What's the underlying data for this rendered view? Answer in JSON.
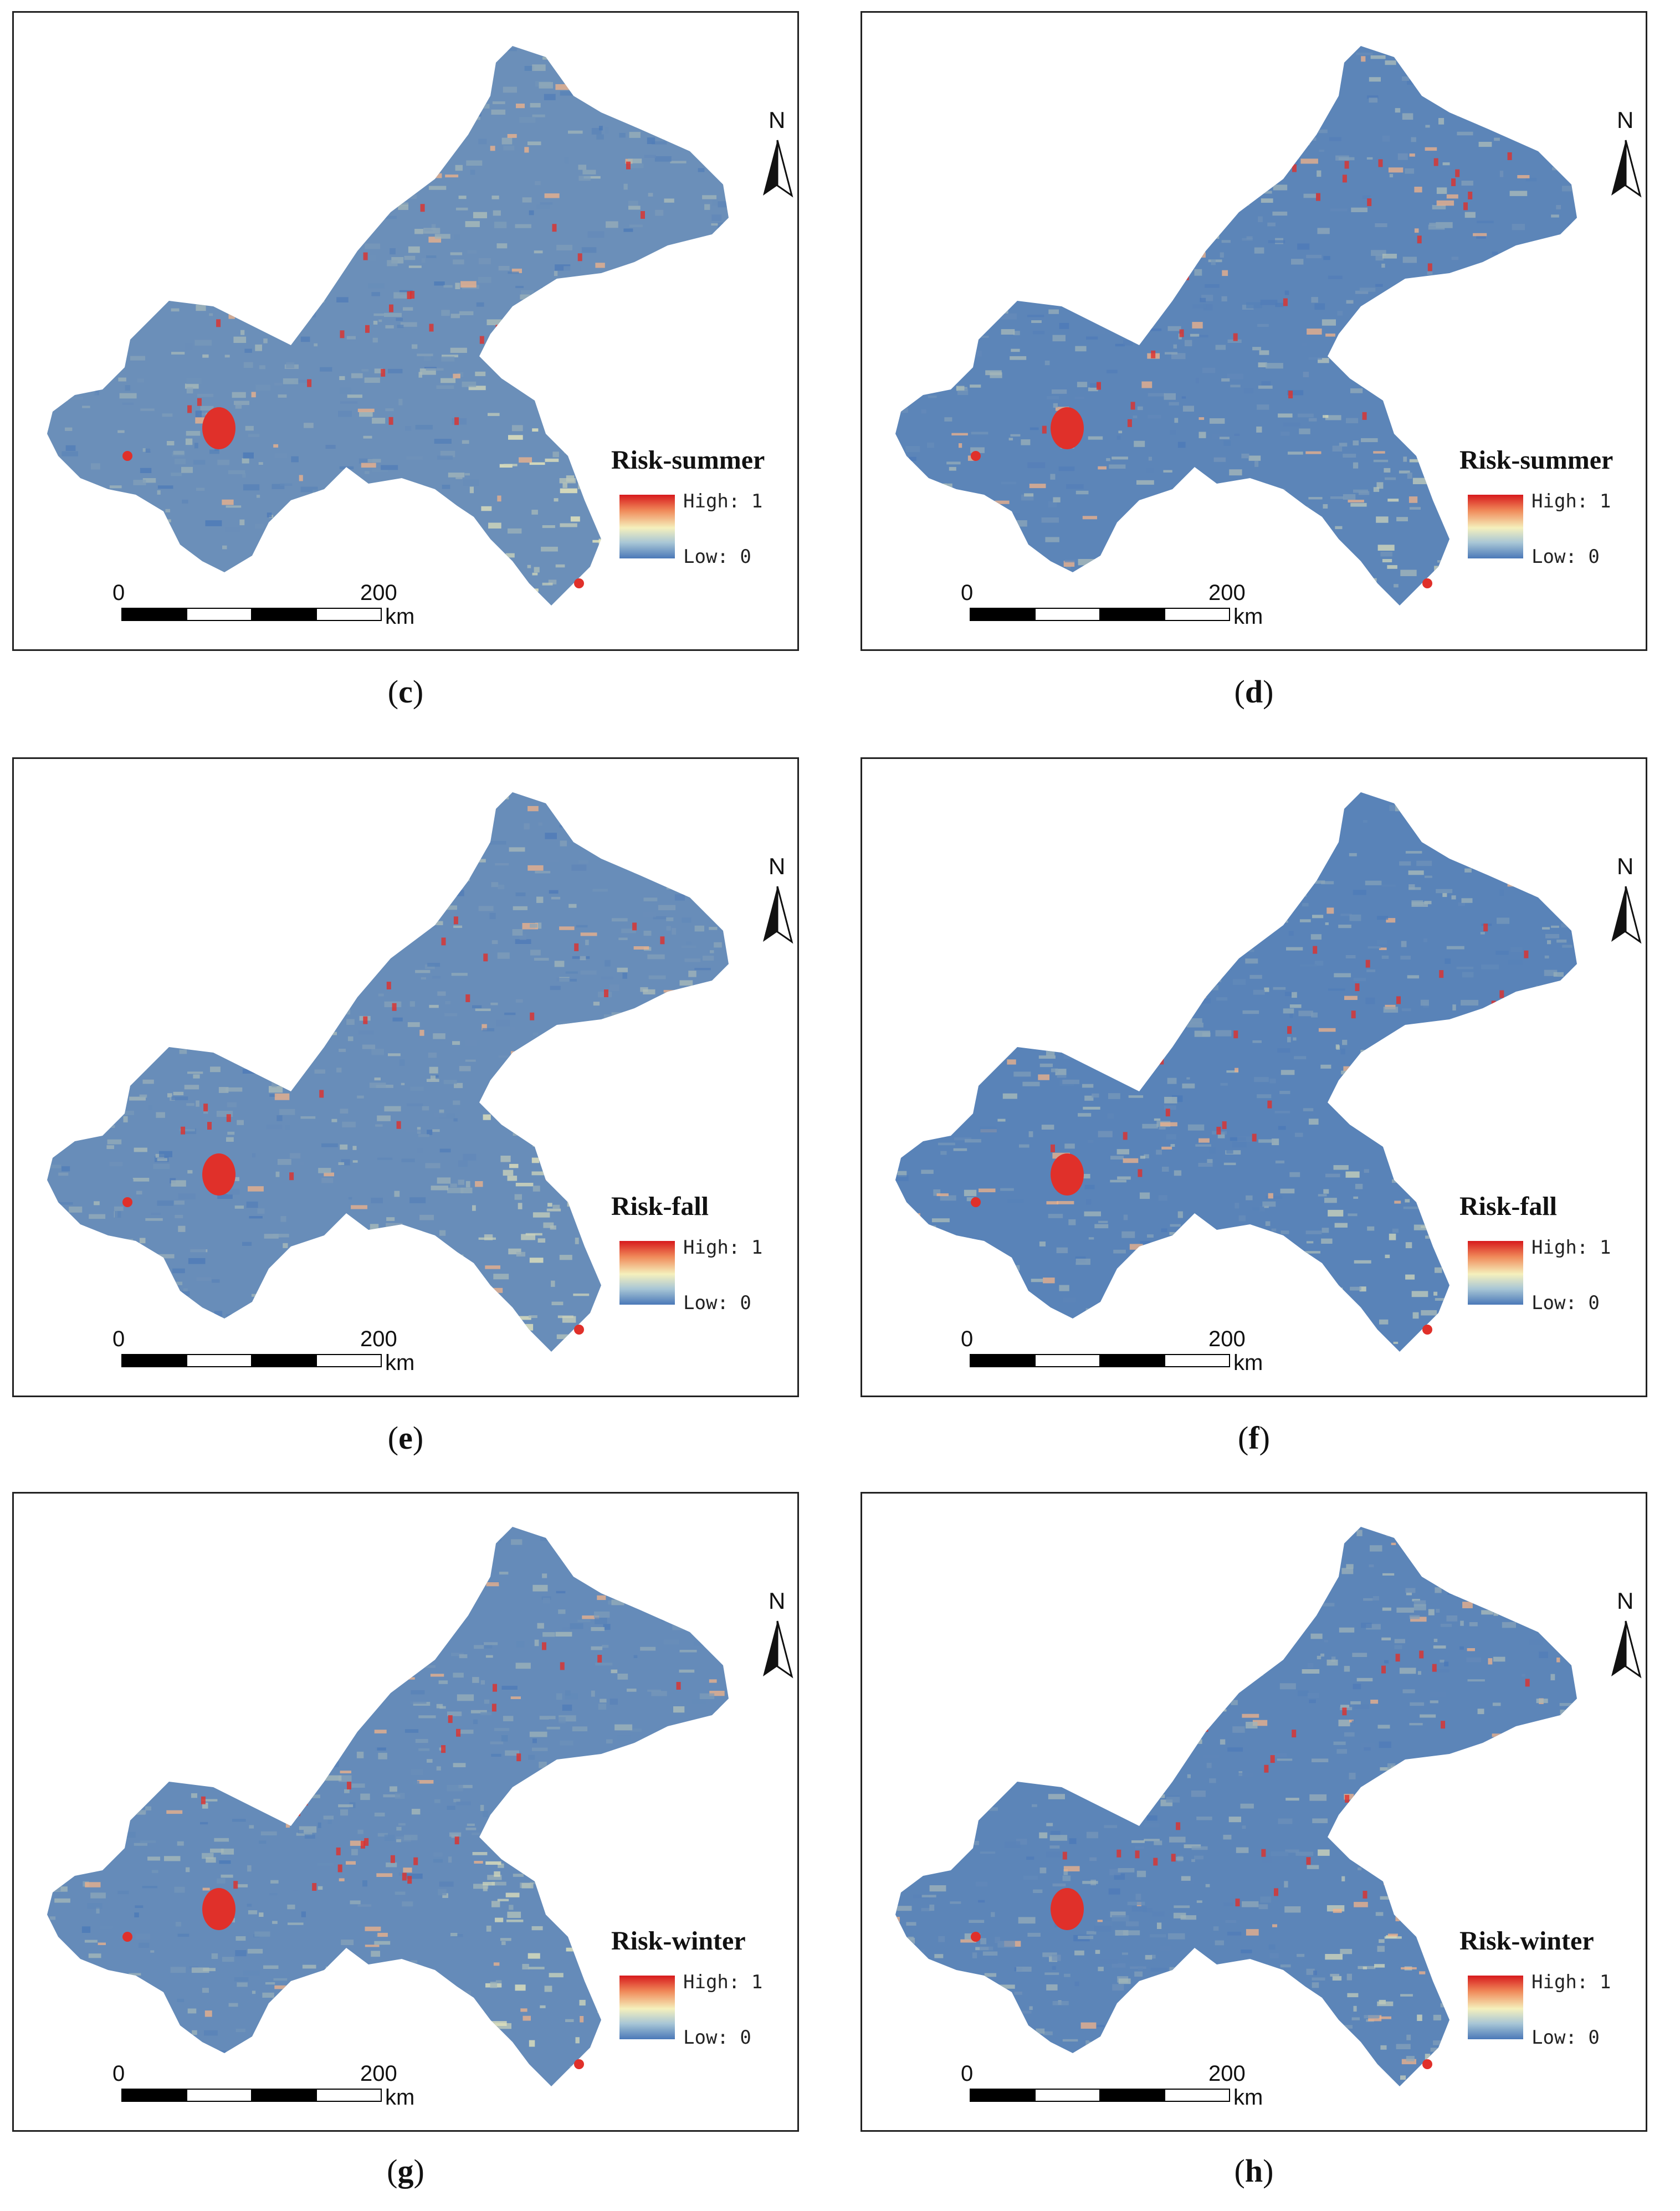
{
  "panels": [
    {
      "id": "c",
      "letter": "c",
      "legend_title": "Risk-summer",
      "high_label": "High: 1",
      "low_label": "Low: 0",
      "north": "N",
      "scale_zero": "0",
      "scale_max": "200",
      "scale_unit": "km",
      "high_share": 0.55
    },
    {
      "id": "d",
      "letter": "d",
      "legend_title": "Risk-summer",
      "high_label": "High: 1",
      "low_label": "Low: 0",
      "north": "N",
      "scale_zero": "0",
      "scale_max": "200",
      "scale_unit": "km",
      "high_share": 0.3
    },
    {
      "id": "e",
      "letter": "e",
      "legend_title": "Risk-fall",
      "high_label": "High: 1",
      "low_label": "Low: 0",
      "north": "N",
      "scale_zero": "0",
      "scale_max": "200",
      "scale_unit": "km",
      "high_share": 0.5
    },
    {
      "id": "f",
      "letter": "f",
      "legend_title": "Risk-fall",
      "high_label": "High: 1",
      "low_label": "Low: 0",
      "north": "N",
      "scale_zero": "0",
      "scale_max": "200",
      "scale_unit": "km",
      "high_share": 0.25
    },
    {
      "id": "g",
      "letter": "g",
      "legend_title": "Risk-winter",
      "high_label": "High: 1",
      "low_label": "Low: 0",
      "north": "N",
      "scale_zero": "0",
      "scale_max": "200",
      "scale_unit": "km",
      "high_share": 0.45
    },
    {
      "id": "h",
      "letter": "h",
      "legend_title": "Risk-winter",
      "high_label": "High: 1",
      "low_label": "Low: 0",
      "north": "N",
      "scale_zero": "0",
      "scale_max": "200",
      "scale_unit": "km",
      "high_share": 0.3
    }
  ],
  "caption_open": "(",
  "caption_close": ")",
  "colors": {
    "high": "#d7191c",
    "mid": "#f5f0bc",
    "low": "#4a78b8",
    "hotspot": "#e0302a"
  }
}
